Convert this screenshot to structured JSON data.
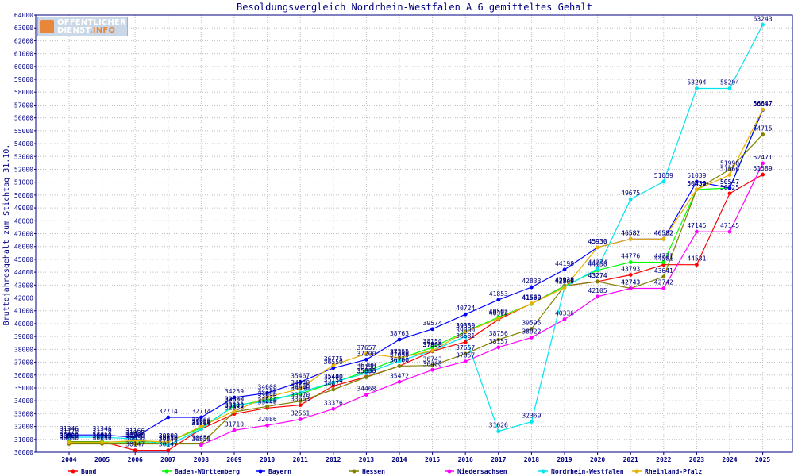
{
  "logo": {
    "line1": "OFFENTLICHER",
    "line2_main": "DIENST",
    "line2_suffix": ".INFO"
  },
  "colors": {
    "axis": "#000080",
    "grid": "#bfbfbf",
    "text": "#000080"
  },
  "chart_data": {
    "type": "line",
    "title": "Besoldungsvergleich Nordrhein-Westfalen A 6 gemitteltes Gehalt",
    "ylabel": "Bruttojahresgehalt zum Stichtag 31.10.",
    "xlabel": "",
    "ylim": [
      30000,
      64000
    ],
    "ytick_step": 1000,
    "grid": true,
    "legend_position": "bottom",
    "categories": [
      "2004",
      "2005",
      "2006",
      "2007",
      "2008",
      "2009",
      "2010",
      "2011",
      "2012",
      "2013",
      "2014",
      "2015",
      "2016",
      "2017",
      "2018",
      "2019",
      "2020",
      "2021",
      "2022",
      "2023",
      "2024",
      "2025"
    ],
    "series": [
      {
        "name": "Bund",
        "color": "#ff0000",
        "values": [
          30829,
          30829,
          30147,
          30147,
          31804,
          32983,
          33440,
          33663,
          35156,
          35863,
          36700,
          37853,
          38581,
          40323,
          41560,
          42935,
          43274,
          43793,
          44581,
          44581,
          50125,
          51589
        ]
      },
      {
        "name": "Baden-Württemberg",
        "color": "#00ff00",
        "values": [
          30800,
          30800,
          30800,
          30800,
          31900,
          33600,
          34080,
          34540,
          35400,
          36300,
          37290,
          38150,
          39380,
          40502,
          41530,
          42930,
          44158,
          44776,
          44771,
          50430,
          50547,
          56647
        ]
      },
      {
        "name": "Bayern",
        "color": "#0000ff",
        "values": [
          31346,
          31346,
          31166,
          32714,
          32714,
          34259,
          34608,
          35467,
          36550,
          37200,
          38763,
          39574,
          40724,
          41853,
          42833,
          44198,
          45930,
          46582,
          46582,
          51039,
          50547,
          56617
        ]
      },
      {
        "name": "Hessen",
        "color": "#808000",
        "values": [
          30650,
          30650,
          30650,
          30650,
          30650,
          33143,
          33560,
          33970,
          34877,
          35830,
          36700,
          36743,
          37657,
          38756,
          39595,
          42935,
          43274,
          42743,
          43641,
          50434,
          51990,
          54715
        ]
      },
      {
        "name": "Niedersachsen",
        "color": "#ff00ff",
        "values": [
          null,
          null,
          null,
          null,
          30553,
          31710,
          32086,
          32561,
          33376,
          34468,
          35472,
          36400,
          37057,
          38157,
          38922,
          40336,
          42105,
          42743,
          42742,
          47145,
          47145,
          52471
        ]
      },
      {
        "name": "Nordrhein-Westfalen",
        "color": "#00e5ee",
        "values": [
          31170,
          31170,
          31037,
          30540,
          31800,
          33680,
          33930,
          34660,
          35440,
          36150,
          37090,
          37900,
          39000,
          31626,
          32369,
          42844,
          44274,
          49675,
          51039,
          58294,
          58294,
          63243
        ]
      },
      {
        "name": "Rheinland-Pfalz",
        "color": "#e8b000",
        "values": [
          30757,
          30757,
          30900,
          30800,
          32000,
          33200,
          34280,
          34940,
          36775,
          37657,
          37355,
          37900,
          39350,
          40402,
          41560,
          42800,
          45930,
          46582,
          46582,
          50430,
          51566,
          56647
        ]
      }
    ]
  }
}
